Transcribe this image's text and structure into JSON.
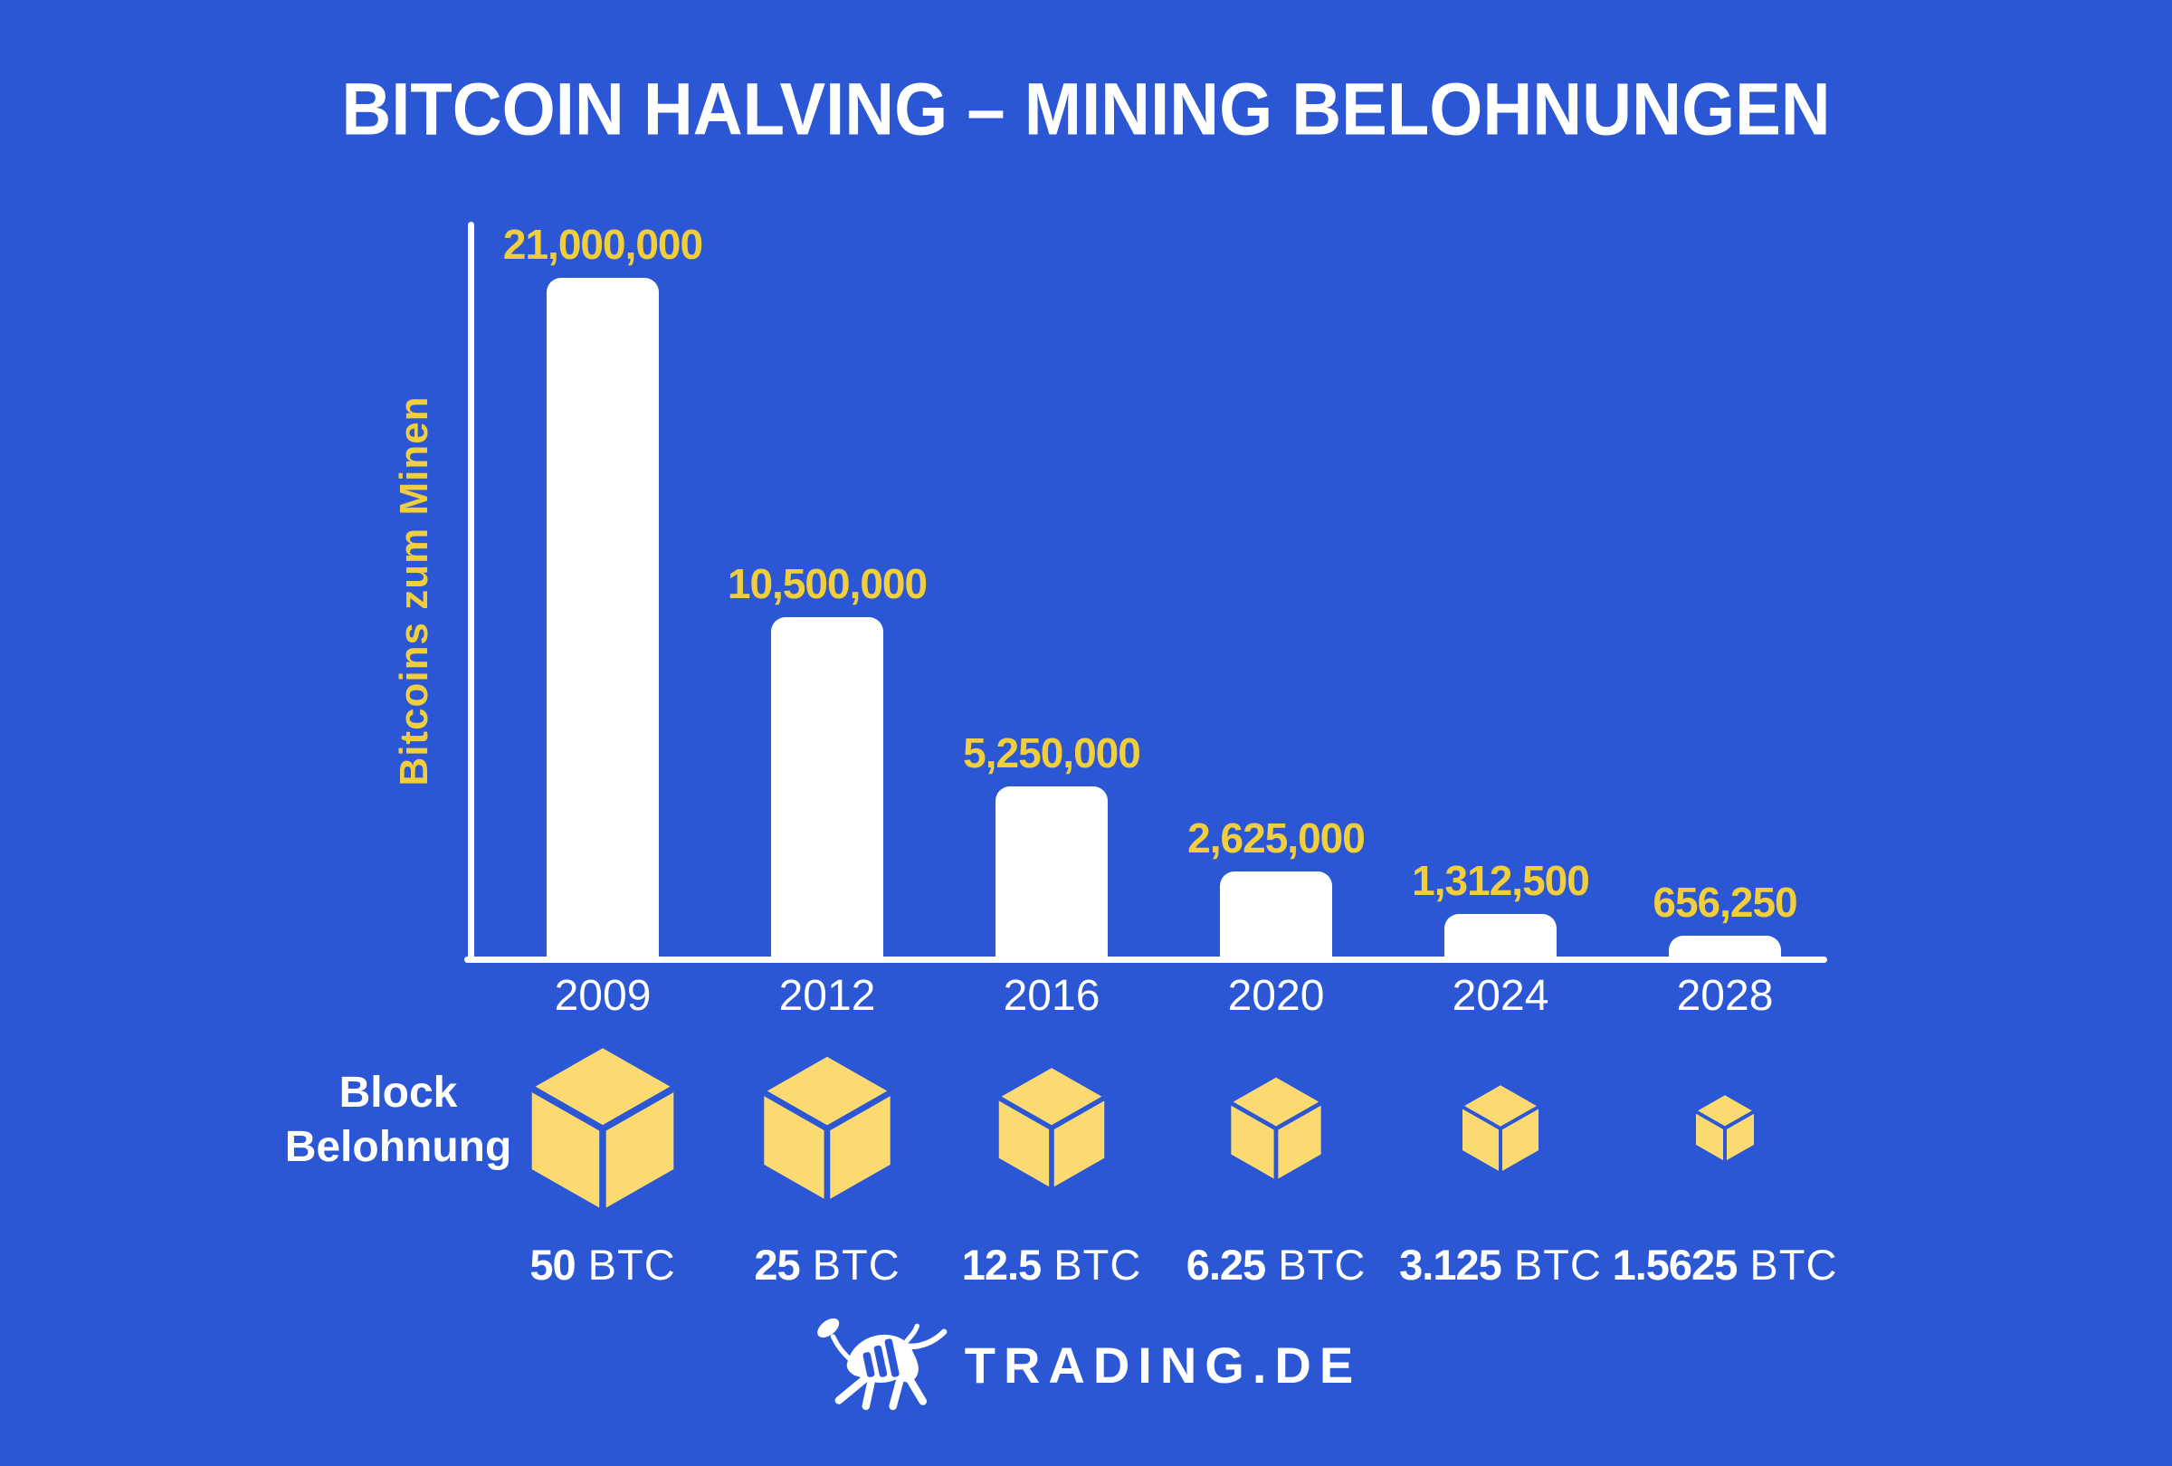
{
  "title": "BITCOIN HALVING – MINING BELOHNUNGEN",
  "colors": {
    "background": "#2b57d4",
    "bar_white": "#ffffff",
    "label_yellow": "#f1ce3c",
    "cube_yellow": "#fbdb71",
    "text_white": "#ffffff"
  },
  "chart_data": {
    "type": "bar",
    "title": "BITCOIN HALVING – MINING BELOHNUNGEN",
    "ylabel": "Bitcoins zum Minen",
    "xlabel": "",
    "categories": [
      "2009",
      "2012",
      "2016",
      "2020",
      "2024",
      "2028"
    ],
    "values": [
      21000000,
      10500000,
      5250000,
      2625000,
      1312500,
      656250
    ],
    "value_labels": [
      "21,000,000",
      "10,500,000",
      "5,250,000",
      "2,625,000",
      "1,312,500",
      "656,250"
    ],
    "ylim": [
      0,
      21000000
    ],
    "grid": false,
    "legend": "none",
    "bar_color": "#ffffff",
    "value_label_color": "#f1ce3c",
    "block_rewards": {
      "label_line1": "Block",
      "label_line2": "Belohnung",
      "btc_values": [
        "50",
        "25",
        "12.5",
        "6.25",
        "3.125",
        "1.5625"
      ],
      "unit": "BTC",
      "icon": "cube-icon",
      "cube_widths": [
        164,
        146,
        122,
        104,
        88,
        68
      ]
    }
  },
  "footer": {
    "brand": "TRADING.DE",
    "logo": "bull-icon"
  }
}
